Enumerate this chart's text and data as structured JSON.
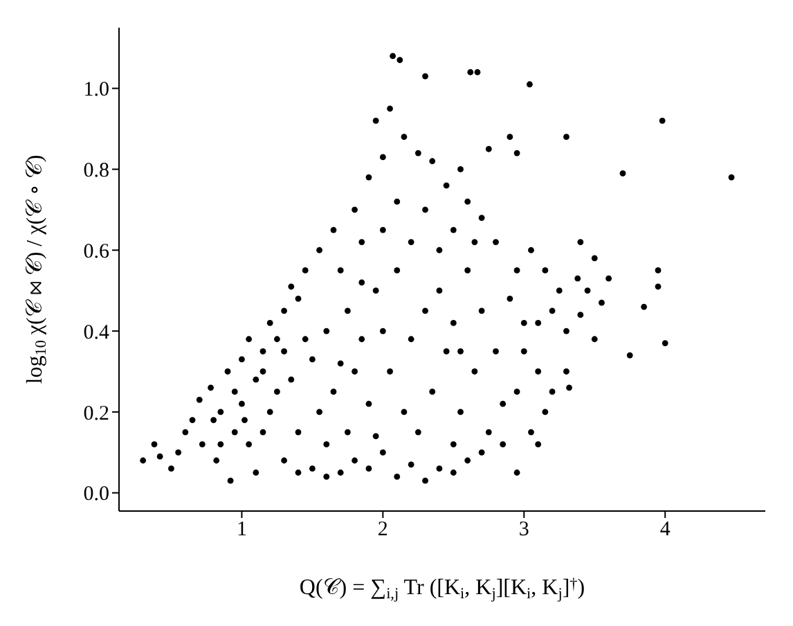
{
  "chart_data": {
    "type": "scatter",
    "xlabel": "Q(𝒞) = ∑$_{i,j}$ Tr ([K$_{i}$, K$_{j}$][K$_{i}$, K$_{j}$]$^{†}$)",
    "ylabel": "log$_{10}$   χ(𝒞 ⋈ 𝒞) / χ(𝒞 ∘ 𝒞)",
    "xlim": [
      0.13,
      4.71
    ],
    "ylim": [
      -0.045,
      1.15
    ],
    "xticks": [
      1,
      2,
      3,
      4
    ],
    "yticks": [
      {
        "value": 0,
        "label": "0.0"
      },
      {
        "value": 0.2,
        "label": "0.2"
      },
      {
        "value": 0.4,
        "label": "0.4"
      },
      {
        "value": 0.6,
        "label": "0.6"
      },
      {
        "value": 0.8,
        "label": "0.8"
      },
      {
        "value": 1,
        "label": "1.0"
      }
    ],
    "grid": false,
    "legend": false,
    "marker": "circle",
    "series": [
      {
        "color": "#000000",
        "x": [
          4.47,
          3.98,
          3.04,
          2.07,
          2.12,
          2.62,
          2.67,
          2.3,
          3.3,
          3.7,
          3.95,
          4.0,
          3.85,
          3.95,
          3.6,
          3.38,
          3.5,
          3.4,
          3.75,
          3.55,
          3.3,
          3.15,
          3.05,
          3.32,
          3.5,
          0.3,
          0.38,
          0.42,
          0.5,
          0.55,
          0.6,
          0.65,
          0.7,
          0.72,
          0.78,
          0.82,
          0.85,
          0.9,
          0.95,
          0.92,
          1.0,
          1.02,
          1.05,
          1.1,
          1.15,
          1.2,
          1.25,
          1.3,
          1.35,
          1.4,
          1.45,
          1.55,
          1.65,
          1.7,
          1.8,
          1.85,
          1.9,
          1.95,
          2.0,
          2.05,
          2.15,
          2.25,
          2.35,
          2.45,
          2.55,
          2.6,
          2.75,
          2.9,
          2.95,
          2.8,
          2.7,
          2.5,
          2.3,
          2.2,
          2.1,
          1.95,
          1.75,
          1.6,
          1.5,
          1.35,
          1.2,
          1.05,
          1.1,
          1.3,
          1.5,
          1.6,
          1.7,
          1.8,
          1.9,
          2.0,
          2.1,
          2.2,
          2.3,
          2.4,
          2.5,
          2.6,
          1.4,
          1.55,
          1.65,
          1.8,
          1.9,
          2.05,
          2.15,
          2.25,
          2.35,
          2.45,
          2.55,
          2.65,
          2.75,
          2.85,
          2.95,
          3.0,
          3.1,
          3.2,
          3.15,
          3.25,
          3.05,
          2.9,
          2.7,
          2.6,
          2.4,
          2.3,
          2.2,
          2.0,
          1.85,
          1.7,
          1.45,
          1.3,
          1.25,
          1.15,
          0.95,
          0.85,
          1.75,
          1.95,
          2.7,
          2.85,
          2.95,
          2.5,
          1.6,
          1.4,
          2.4,
          2.5,
          2.8,
          2.95,
          3.1,
          3.2,
          3.3,
          3.1,
          2.0,
          2.1,
          1.85,
          3.4,
          3.45,
          3.0,
          2.65,
          2.55,
          1.15,
          1.0,
          0.8
        ],
        "values": [
          0.78,
          0.92,
          1.01,
          1.08,
          1.07,
          1.04,
          1.04,
          1.03,
          0.88,
          0.79,
          0.55,
          0.37,
          0.46,
          0.51,
          0.53,
          0.53,
          0.58,
          0.62,
          0.34,
          0.47,
          0.3,
          0.2,
          0.15,
          0.26,
          0.38,
          0.08,
          0.12,
          0.09,
          0.06,
          0.1,
          0.15,
          0.18,
          0.23,
          0.12,
          0.26,
          0.08,
          0.2,
          0.3,
          0.25,
          0.03,
          0.33,
          0.18,
          0.38,
          0.28,
          0.35,
          0.42,
          0.38,
          0.45,
          0.51,
          0.48,
          0.55,
          0.6,
          0.65,
          0.55,
          0.7,
          0.62,
          0.78,
          0.92,
          0.83,
          0.95,
          0.88,
          0.84,
          0.82,
          0.76,
          0.8,
          0.72,
          0.85,
          0.88,
          0.84,
          0.62,
          0.68,
          0.65,
          0.7,
          0.62,
          0.55,
          0.5,
          0.45,
          0.4,
          0.33,
          0.28,
          0.2,
          0.12,
          0.05,
          0.08,
          0.06,
          0.04,
          0.05,
          0.08,
          0.06,
          0.1,
          0.04,
          0.07,
          0.03,
          0.06,
          0.05,
          0.08,
          0.15,
          0.2,
          0.25,
          0.3,
          0.22,
          0.3,
          0.2,
          0.15,
          0.25,
          0.35,
          0.2,
          0.3,
          0.15,
          0.22,
          0.25,
          0.35,
          0.42,
          0.45,
          0.55,
          0.5,
          0.6,
          0.48,
          0.45,
          0.55,
          0.5,
          0.45,
          0.38,
          0.4,
          0.38,
          0.32,
          0.38,
          0.35,
          0.25,
          0.15,
          0.15,
          0.12,
          0.15,
          0.14,
          0.1,
          0.12,
          0.05,
          0.12,
          0.12,
          0.05,
          0.6,
          0.42,
          0.35,
          0.55,
          0.3,
          0.25,
          0.4,
          0.12,
          0.65,
          0.72,
          0.52,
          0.44,
          0.5,
          0.42,
          0.62,
          0.35,
          0.3,
          0.22,
          0.18
        ]
      }
    ]
  }
}
